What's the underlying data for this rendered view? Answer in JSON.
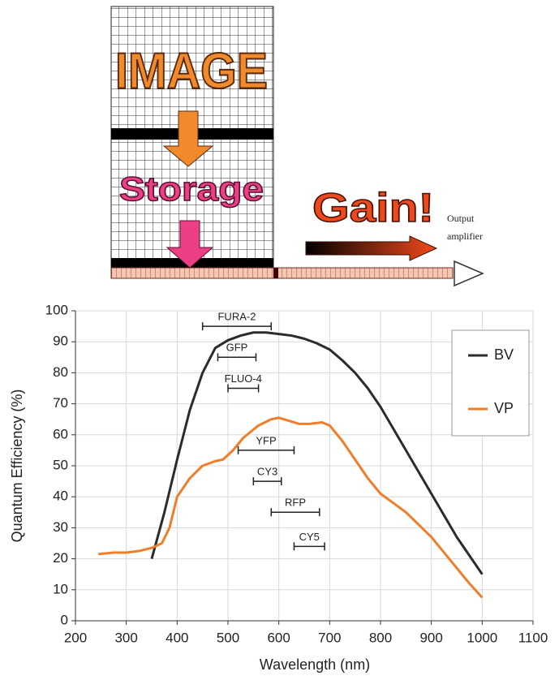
{
  "diagram": {
    "image_label": "IMAGE",
    "storage_label": "Storage",
    "gain_label": "Gain!",
    "output_label": [
      "Output",
      "amplifier"
    ]
  },
  "chart_data": {
    "type": "line",
    "xlabel": "Wavelength (nm)",
    "ylabel": "Quantum Efficiency (%)",
    "xlim": [
      200,
      1100
    ],
    "xticks": [
      200,
      300,
      400,
      500,
      600,
      700,
      800,
      900,
      1000,
      1100
    ],
    "ylim": [
      0,
      100
    ],
    "yticks": [
      0,
      10,
      20,
      30,
      40,
      50,
      60,
      70,
      80,
      90,
      100
    ],
    "grid": true,
    "legend": "upper right",
    "series": [
      {
        "name": "BV",
        "color": "#2b2b2b",
        "x": [
          350,
          375,
          400,
          425,
          450,
          475,
          500,
          525,
          550,
          575,
          600,
          625,
          650,
          675,
          700,
          725,
          750,
          775,
          800,
          825,
          850,
          875,
          900,
          925,
          950,
          975,
          1000
        ],
        "values": [
          20,
          35,
          52,
          68,
          80,
          88,
          90.5,
          92,
          93,
          93,
          92.5,
          92,
          91,
          89.5,
          87.5,
          84,
          80,
          75,
          69,
          62,
          55,
          48,
          41,
          34,
          27,
          21,
          15
        ]
      },
      {
        "name": "VP",
        "color": "#f07d2a",
        "x": [
          245,
          275,
          300,
          325,
          350,
          370,
          385,
          400,
          425,
          450,
          475,
          490,
          510,
          530,
          560,
          585,
          600,
          620,
          640,
          660,
          685,
          700,
          725,
          750,
          775,
          800,
          825,
          850,
          875,
          900,
          925,
          950,
          975,
          1000
        ],
        "values": [
          21.5,
          22,
          22,
          22.5,
          23.5,
          25,
          30,
          40,
          46,
          50,
          51.5,
          52,
          55,
          59,
          63,
          65,
          65.5,
          64.5,
          63.5,
          63.5,
          64,
          63,
          58,
          52,
          46,
          41,
          38,
          35,
          31,
          27,
          22,
          17,
          12,
          7.5
        ]
      }
    ],
    "ranges": [
      {
        "label": "FURA-2",
        "start": 450,
        "end": 585,
        "y": 95
      },
      {
        "label": "GFP",
        "start": 480,
        "end": 555,
        "y": 85
      },
      {
        "label": "FLUO-4",
        "start": 500,
        "end": 560,
        "y": 75
      },
      {
        "label": "YFP",
        "start": 520,
        "end": 630,
        "y": 55
      },
      {
        "label": "CY3",
        "start": 550,
        "end": 605,
        "y": 45
      },
      {
        "label": "RFP",
        "start": 585,
        "end": 680,
        "y": 35
      },
      {
        "label": "CY5",
        "start": 630,
        "end": 690,
        "y": 24
      }
    ]
  }
}
